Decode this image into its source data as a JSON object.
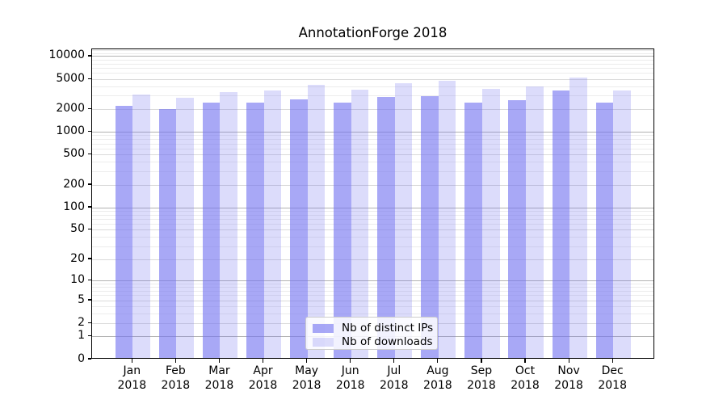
{
  "chart_data": {
    "type": "bar",
    "title": "AnnotationForge 2018",
    "xlabel": "",
    "ylabel": "",
    "x_year_label": "2018",
    "categories": [
      "Jan",
      "Feb",
      "Mar",
      "Apr",
      "May",
      "Jun",
      "Jul",
      "Aug",
      "Sep",
      "Oct",
      "Nov",
      "Dec"
    ],
    "series": [
      {
        "name": "Nb of distinct IPs",
        "color": "rgba(115,115,240,0.62)",
        "values": [
          2150,
          1950,
          2350,
          2350,
          2570,
          2370,
          2800,
          2860,
          2370,
          2550,
          3400,
          2370
        ]
      },
      {
        "name": "Nb of downloads",
        "color": "rgba(115,115,240,0.25)",
        "values": [
          3000,
          2700,
          3250,
          3400,
          4030,
          3500,
          4270,
          4550,
          3600,
          3870,
          5050,
          3350
        ]
      }
    ],
    "y_ticks": [
      0,
      1,
      2,
      5,
      10,
      20,
      50,
      100,
      200,
      500,
      1000,
      2000,
      5000,
      10000
    ],
    "scale": "log1p",
    "ylim": [
      0,
      12500
    ],
    "grid": {
      "horizontal": true,
      "vertical": false,
      "major_decades": [
        1,
        10,
        100,
        1000,
        10000
      ],
      "major_color": "rgba(0,0,0,0.30)",
      "minor_color": "rgba(0,0,0,0.075)"
    },
    "legend": {
      "position": "lower-center",
      "entries": [
        "Nb of distinct IPs",
        "Nb of downloads"
      ]
    },
    "axis_color": "#000000"
  }
}
